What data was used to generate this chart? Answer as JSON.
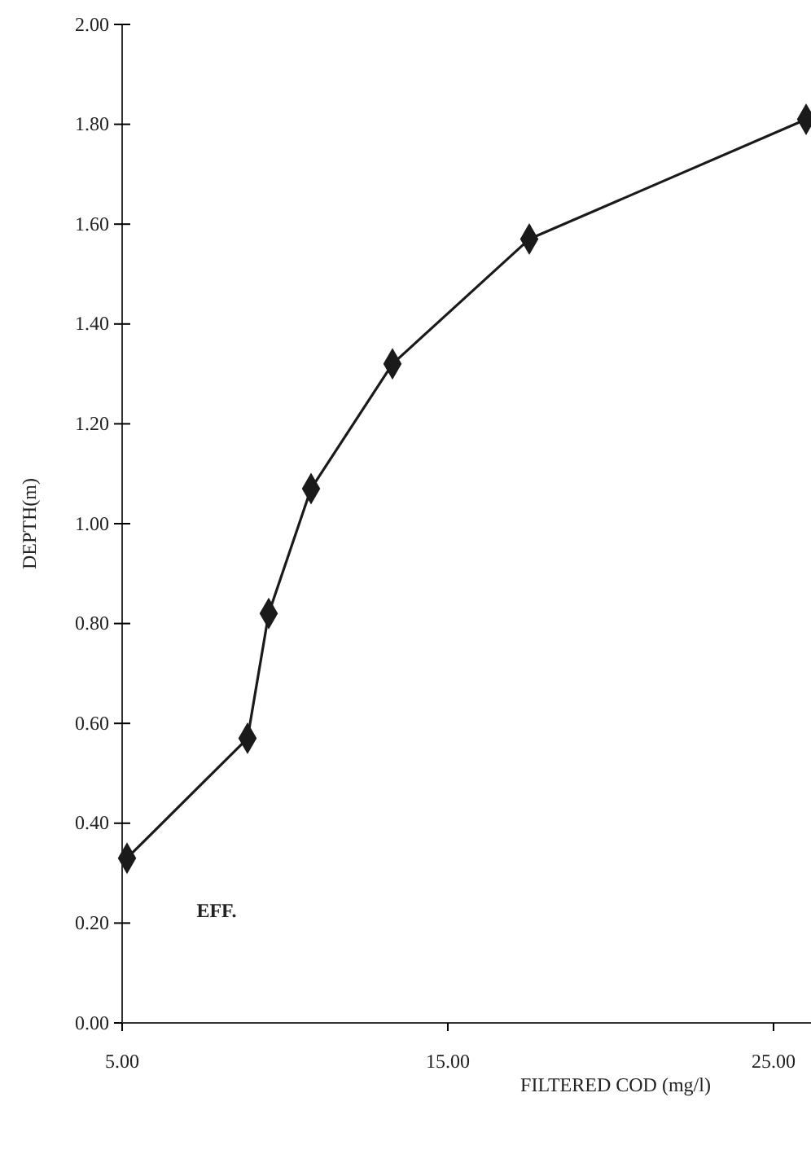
{
  "chart_data": {
    "type": "line",
    "xlabel": "FILTERED  COD (mg/l)",
    "ylabel": "DEPTH(m)",
    "x": [
      5.15,
      8.85,
      9.5,
      10.8,
      13.3,
      17.5,
      26.0
    ],
    "series": [
      {
        "color": "#1a1a1a",
        "values": [
          0.33,
          0.57,
          0.82,
          1.07,
          1.32,
          1.57,
          1.81
        ]
      }
    ],
    "xlim": [
      5,
      26.2
    ],
    "xticks": [
      {
        "value": 5,
        "label": "5.00"
      },
      {
        "value": 15,
        "label": "15.00"
      },
      {
        "value": 25,
        "label": "25.00"
      }
    ],
    "ylim": [
      0,
      2
    ],
    "yticks": [
      {
        "value": 0,
        "label": "0.00"
      },
      {
        "value": 0.2,
        "label": "0.20"
      },
      {
        "value": 0.4,
        "label": "0.40"
      },
      {
        "value": 0.6,
        "label": "0.60"
      },
      {
        "value": 0.8,
        "label": "0.80"
      },
      {
        "value": 1,
        "label": "1.00"
      },
      {
        "value": 1.2,
        "label": "1.20"
      },
      {
        "value": 1.4,
        "label": "1.40"
      },
      {
        "value": 1.6,
        "label": "1.60"
      },
      {
        "value": 1.8,
        "label": "1.80"
      },
      {
        "value": 2,
        "label": "2.00"
      }
    ],
    "marker": "diamond",
    "line_style": "solid",
    "grid": false,
    "annotations": [
      "EFF."
    ]
  }
}
